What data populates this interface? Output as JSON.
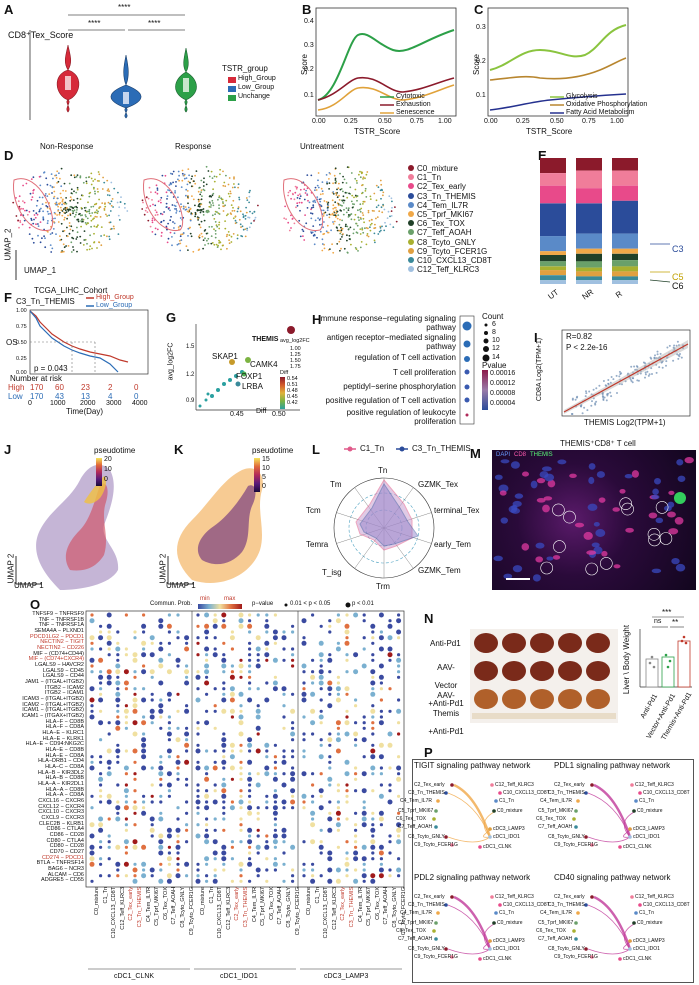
{
  "panels": {
    "A": {
      "label": "A",
      "title": "CD8⁺Tex_Score",
      "signif": [
        "****",
        "****",
        "****"
      ],
      "legend_title": "TSTR_group",
      "legend": [
        "High_Group",
        "Low_Group",
        "Unchange"
      ],
      "colors": [
        "#d62a3a",
        "#2b6cb6",
        "#2ca048"
      ]
    },
    "B": {
      "label": "B",
      "ylabel": "Score",
      "xlabel": "TSTR_Score",
      "yticks": [
        "0.1",
        "0.2",
        "0.3",
        "0.4"
      ],
      "xticks": [
        "0.00",
        "0.25",
        "0.50",
        "0.75",
        "1.00"
      ],
      "legend": [
        "Cytotoxic",
        "Exhaustion",
        "Senescence"
      ],
      "colors": [
        "#2ca048",
        "#8b1a2b",
        "#e0a23a"
      ]
    },
    "C": {
      "label": "C",
      "ylabel": "Score",
      "xlabel": "TSTR_Score",
      "yticks": [
        "0.1",
        "0.2",
        "0.3"
      ],
      "xticks": [
        "0.00",
        "0.25",
        "0.50",
        "0.75",
        "1.00"
      ],
      "legend": [
        "Glycolysis",
        "Oxidative Phosphorylation",
        "Fatty Acid Metabolism"
      ],
      "colors": [
        "#8ac43f",
        "#b8862f",
        "#25318f"
      ]
    },
    "D": {
      "label": "D",
      "titles": [
        "Non-Response",
        "Response",
        "Untreatment"
      ],
      "axis_y": "UMAP_2",
      "axis_x": "UMAP_1",
      "clusters": [
        "C0_mixture",
        "C1_Tn",
        "C2_Tex_early",
        "C3_Tn_THEMIS",
        "C4_Tem_IL7R",
        "C5_Tprf_MKI67",
        "C6_Tex_TOX",
        "C7_Teff_AOAH",
        "C8_Tcyto_GNLY",
        "C9_Tcyto_FCER1G",
        "C10_CXCL13_CD8T",
        "C12_Teff_KLRC3"
      ],
      "cluster_colors": [
        "#8b1a2b",
        "#f07d9a",
        "#e84a8a",
        "#2b4c9a",
        "#5a8ac8",
        "#f0a848",
        "#204028",
        "#6aa06a",
        "#a8b030",
        "#e0a040",
        "#3a8a9a",
        "#a0c0e0"
      ]
    },
    "E": {
      "label": "E",
      "groups": [
        "UT",
        "NR",
        "R"
      ],
      "tags": [
        "C3",
        "C5",
        "C6"
      ]
    },
    "F": {
      "label": "F",
      "title": "TCGA_LIHC_Cohort",
      "subtitle": "C3_Tn_THEMIS",
      "legend": [
        "High_Group",
        "Low_Group"
      ],
      "ylabel": "OS",
      "yticks": [
        "1.00",
        "0.75",
        "0.50",
        "0.25",
        "0.00"
      ],
      "pvalue": "p = 0.043",
      "risk_title": "Number at risk",
      "risk_rows": [
        {
          "name": "High",
          "values": [
            "170",
            "60",
            "23",
            "2",
            "0"
          ]
        },
        {
          "name": "Low",
          "values": [
            "170",
            "43",
            "13",
            "4",
            "0"
          ]
        }
      ],
      "xticks": [
        "0",
        "1000",
        "2000",
        "3000",
        "4000"
      ],
      "xlabel": "Time(Day)"
    },
    "G": {
      "label": "G",
      "ylabel": "avg_log2FC",
      "xlabel": "Diff",
      "yticks": [
        "0.9",
        "1.2",
        "1.5"
      ],
      "xticks": [
        "0.45",
        "0.50"
      ],
      "genes": [
        "THEMIS",
        "SKAP1",
        "CAMK4",
        "FOXP1",
        "LRBA"
      ],
      "legend_size_title": "avg_log2FC",
      "legend_size": [
        "1.00",
        "1.25",
        "1.50",
        "1.75"
      ],
      "legend_color_title": "Diff",
      "legend_color": [
        "0.54",
        "0.51",
        "0.48",
        "0.45",
        "0.42"
      ]
    },
    "H": {
      "label": "H",
      "terms": [
        "immune response−regulating signaling pathway",
        "antigen receptor−mediated signaling pathway",
        "regulation of T cell activation",
        "T cell proliferation",
        "peptidyl−serine phosphorylation",
        "positive regulation of T cell activation",
        "positive regulation of leukocyte proliferation"
      ],
      "count_title": "Count",
      "counts": [
        "6",
        "8",
        "10",
        "12",
        "14"
      ],
      "p_title": "Pvalue",
      "p_ticks": [
        "0.00016",
        "0.00012",
        "0.00008",
        "0.00004"
      ]
    },
    "I": {
      "label": "I",
      "r": "R=0.82",
      "p": "P < 2.2e-16",
      "ylabel": "CD8A Log2(TPM+1)",
      "xlabel": "THEMIS Log2(TPM+1)"
    },
    "J": {
      "label": "J",
      "legend_title": "pseudotime",
      "ticks": [
        "20",
        "10",
        "0"
      ],
      "axis_y": "UMAP 2",
      "axis_x": "UMAP 1"
    },
    "K": {
      "label": "K",
      "legend_title": "pseudotime",
      "ticks": [
        "15",
        "10",
        "5",
        "0"
      ],
      "axis_y": "UMAP 2",
      "axis_x": "UMAP 1"
    },
    "L": {
      "label": "L",
      "legend": [
        "C1_Tn",
        "C3_Tn_THEMIS"
      ],
      "axes": [
        "Tn",
        "GZMK_Tex",
        "terminal_Tex",
        "early_Tem",
        "GZMK_Tem",
        "Trm",
        "T_isg",
        "Temra",
        "Tcm",
        "Tm"
      ]
    },
    "M": {
      "label": "M",
      "title": "THEMIS⁺CD8⁺ T cell",
      "channels": [
        "DAPI",
        "CD8",
        "THEMIS"
      ]
    },
    "N": {
      "label": "N",
      "rows": [
        "Anti-Pd1",
        "AAV-Vector +Anti-Pd1",
        "AAV-Themis +Anti-Pd1"
      ],
      "ylabel": "Liver \\ Body Weight",
      "sig": [
        "***",
        "ns",
        "**"
      ],
      "xcats": [
        "Anti-Pd1",
        "Vector+Anti-Pd1",
        "Themis+Anti-Pd1"
      ]
    },
    "O": {
      "label": "O",
      "legend_prob": "Commun. Prob.",
      "legend_min": "min",
      "legend_max": "max",
      "legend_p": "p−value",
      "legend_p1": "0.01 < p < 0.05",
      "legend_p2": "p < 0.01",
      "pairs": [
        "TNFSF9 − TNFRSF9",
        "TNF − TNFRSF1B",
        "TNF − TNFRSF1A",
        "SEMA4A − PLXND1",
        "PDCD1LG2 − PDCD1",
        "NECTIN2 − TIGIT",
        "NECTIN2 − CD226",
        "MIF − (CD74+CD44)",
        "MIF − (CD74+CXCR4)",
        "LGALS9 − HAVCR2",
        "LGALS9 − CD45",
        "LGALS9 − CD44",
        "JAM1 − (ITGAL+ITGB2)",
        "ITGB2 − ICAM2",
        "ITGB2 − ICAM1",
        "ICAM3 − (ITGAL+ITGB2)",
        "ICAM2 − (ITGAL+ITGB2)",
        "ICAM1 − (ITGAL+ITGB2)",
        "ICAM1 − (ITGAX+ITGB2)",
        "HLA−F − CD8B",
        "HLA−F − CD8A",
        "HLA−E − KLRC1",
        "HLA−E − KLRK1",
        "HLA−E − CD94:NKG2C",
        "HLA−E − CD8B",
        "HLA−E − CD8A",
        "HLA−DRB1 − CD4",
        "HLA−C − CD8A",
        "HLA−B − KIR3DL2",
        "HLA−B − CD8B",
        "HLA−A − KIR2DL1",
        "HLA−A − CD8B",
        "HLA−A − CD8A",
        "CXCL16 − CXCR6",
        "CXCL12 − CXCR4",
        "CXCL10 − CXCR3",
        "CXCL9 − CXCR3",
        "CLEC2B − KLRB1",
        "CD86 − CTLA4",
        "CD86 − CD28",
        "CD80 − CTLA4",
        "CD80 − CD28",
        "CD70 − CD27",
        "CD274 − PDCD1",
        "BTLA − TNFRSF14",
        "BAG6 − NCR3",
        "ALCAM − CD6",
        "ADGRE5 − CD55"
      ],
      "red_pairs": [
        4,
        5,
        6,
        8,
        43
      ],
      "cols": [
        "C0_mixture",
        "C1_Tn",
        "C10_CXCL13_CD8T",
        "C12_Teff_KLRC3",
        "C2_Tex_early",
        "C3_Tn_THEMIS",
        "C4_Tem_IL7R",
        "C5_Tprf_MKI67",
        "C6_Tex_TOX",
        "C7_Teff_AOAH",
        "C8_Tcyto_GNLY",
        "C9_Tcyto_FCER1G"
      ],
      "red_cols": [
        4,
        5
      ],
      "groups": [
        "cDC1_CLNK",
        "cDC1_IDO1",
        "cDC3_LAMP3"
      ]
    },
    "P": {
      "label": "P",
      "titles": [
        "TIGIT signaling pathway network",
        "PDL1 signaling pathway network",
        "PDL2 signaling pathway network",
        "CD40 signaling pathway network"
      ],
      "nodes": [
        "C2_Tex_early",
        "C12_Teff_KLRC3",
        "C10_CXCL13_CD8T",
        "C3_Tn_THEMIS",
        "C1_Tn",
        "C4_Tem_IL7R",
        "C0_mixture",
        "C5_Tprf_MKI67",
        "C6_Tex_TOX",
        "cDC3_LAMP3",
        "C7_Teff_AOAH",
        "cDC1_IDO1",
        "C8_Tcyto_GNLY",
        "C9_Tcyto_FCER1G",
        "cDC1_CLNK"
      ]
    }
  }
}
